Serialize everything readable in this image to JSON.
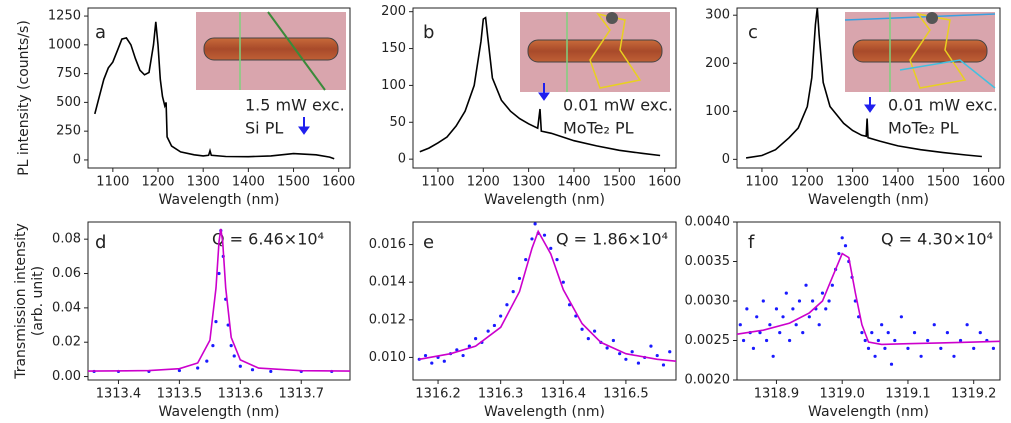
{
  "chart_data": [
    {
      "type": "line",
      "label": "a",
      "xlabel": "Wavelength (nm)",
      "ylabel": "PL intensity (counts/s)",
      "annotations": [
        "1.5 mW exc.",
        "Si PL"
      ],
      "xlim": [
        1045,
        1625
      ],
      "xticks": [
        1100,
        1200,
        1300,
        1400,
        1500,
        1600
      ],
      "ylim": [
        -70,
        1320
      ],
      "yticks": [
        0,
        250,
        500,
        750,
        1000,
        1250
      ],
      "series": [
        {
          "color": "#000000",
          "mode": "line",
          "x": [
            1060,
            1070,
            1080,
            1090,
            1100,
            1110,
            1120,
            1130,
            1140,
            1150,
            1160,
            1170,
            1180,
            1190,
            1195,
            1200,
            1205,
            1210,
            1215,
            1218,
            1220,
            1230,
            1250,
            1280,
            1300,
            1312,
            1315,
            1318,
            1350,
            1400,
            1450,
            1500,
            1550,
            1580,
            1590
          ],
          "values": [
            400,
            550,
            700,
            800,
            850,
            950,
            1050,
            1060,
            1000,
            880,
            780,
            740,
            760,
            1000,
            1200,
            1000,
            700,
            550,
            470,
            500,
            200,
            120,
            70,
            45,
            35,
            40,
            80,
            40,
            30,
            28,
            35,
            55,
            45,
            25,
            10
          ]
        }
      ]
    },
    {
      "type": "line",
      "label": "b",
      "xlabel": "Wavelength (nm)",
      "annotations": [
        "0.01 mW exc.",
        "MoTe₂ PL"
      ],
      "xlim": [
        1045,
        1625
      ],
      "xticks": [
        1100,
        1200,
        1300,
        1400,
        1500,
        1600
      ],
      "ylim": [
        -12,
        205
      ],
      "yticks": [
        0,
        50,
        100,
        150,
        200
      ],
      "series": [
        {
          "color": "#000000",
          "mode": "line",
          "x": [
            1060,
            1080,
            1100,
            1120,
            1140,
            1160,
            1180,
            1195,
            1200,
            1205,
            1210,
            1220,
            1240,
            1260,
            1280,
            1300,
            1320,
            1325,
            1328,
            1350,
            1400,
            1450,
            1500,
            1550,
            1590
          ],
          "values": [
            10,
            15,
            22,
            30,
            45,
            65,
            100,
            160,
            190,
            192,
            165,
            110,
            80,
            65,
            55,
            48,
            42,
            68,
            38,
            35,
            25,
            18,
            12,
            8,
            5
          ]
        }
      ]
    },
    {
      "type": "line",
      "label": "c",
      "xlabel": "Wavelength (nm)",
      "annotations": [
        "0.01 mW exc.",
        "MoTe₂ PL"
      ],
      "xlim": [
        1045,
        1625
      ],
      "xticks": [
        1100,
        1200,
        1300,
        1400,
        1500,
        1600
      ],
      "ylim": [
        -18,
        315
      ],
      "yticks": [
        0,
        100,
        200,
        300
      ],
      "series": [
        {
          "color": "#000000",
          "mode": "line",
          "x": [
            1065,
            1100,
            1130,
            1160,
            1180,
            1200,
            1210,
            1218,
            1222,
            1226,
            1235,
            1250,
            1280,
            1300,
            1320,
            1330,
            1332,
            1334,
            1360,
            1400,
            1450,
            1500,
            1550,
            1585
          ],
          "values": [
            3,
            8,
            20,
            45,
            65,
            110,
            170,
            280,
            315,
            260,
            160,
            110,
            75,
            60,
            50,
            48,
            85,
            45,
            38,
            28,
            20,
            14,
            9,
            6
          ]
        }
      ]
    },
    {
      "type": "scatter",
      "label": "d",
      "xlabel": "Wavelength (nm)",
      "ylabel": [
        "Transmission intensity",
        "(arb. unit)"
      ],
      "annotations": [
        "Q = 6.46×10⁴"
      ],
      "xlim": [
        1313.35,
        1313.78
      ],
      "xticks": [
        1313.4,
        1313.5,
        1313.6,
        1313.7
      ],
      "ylim": [
        -0.002,
        0.09
      ],
      "yticks": [
        {
          "value": 0,
          "label": "0.00"
        },
        0.02,
        0.04,
        0.06,
        0.08
      ],
      "series": [
        {
          "color": "#1a1aff",
          "mode": "markers",
          "x": [
            1313.36,
            1313.4,
            1313.45,
            1313.5,
            1313.53,
            1313.545,
            1313.555,
            1313.56,
            1313.565,
            1313.568,
            1313.572,
            1313.576,
            1313.58,
            1313.585,
            1313.59,
            1313.6,
            1313.62,
            1313.65,
            1313.7,
            1313.75
          ],
          "values": [
            0.003,
            0.003,
            0.003,
            0.0035,
            0.005,
            0.009,
            0.018,
            0.032,
            0.06,
            0.085,
            0.07,
            0.045,
            0.03,
            0.018,
            0.012,
            0.006,
            0.004,
            0.003,
            0.003,
            0.003
          ]
        },
        {
          "color": "#cc00cc",
          "mode": "line",
          "x": [
            1313.35,
            1313.45,
            1313.5,
            1313.53,
            1313.55,
            1313.56,
            1313.565,
            1313.568,
            1313.571,
            1313.576,
            1313.585,
            1313.6,
            1313.63,
            1313.7,
            1313.78
          ],
          "values": [
            0.0032,
            0.0035,
            0.0046,
            0.0079,
            0.0211,
            0.0516,
            0.0785,
            0.086,
            0.0785,
            0.0516,
            0.0228,
            0.0097,
            0.0049,
            0.0034,
            0.0032
          ]
        }
      ]
    },
    {
      "type": "scatter",
      "label": "e",
      "xlabel": "Wavelength (nm)",
      "annotations": [
        "Q = 1.86×10⁴"
      ],
      "xlim": [
        1316.16,
        1316.58
      ],
      "xticks": [
        1316.2,
        1316.3,
        1316.4,
        1316.5
      ],
      "ylim": [
        0.0088,
        0.0172
      ],
      "yticks": [
        {
          "value": 0.01,
          "label": "0.010"
        },
        0.012,
        0.014,
        0.016
      ],
      "series": [
        {
          "color": "#1a1aff",
          "mode": "markers",
          "x": [
            1316.17,
            1316.18,
            1316.19,
            1316.2,
            1316.21,
            1316.22,
            1316.23,
            1316.24,
            1316.25,
            1316.26,
            1316.27,
            1316.28,
            1316.29,
            1316.3,
            1316.31,
            1316.32,
            1316.33,
            1316.34,
            1316.35,
            1316.355,
            1316.36,
            1316.37,
            1316.38,
            1316.39,
            1316.4,
            1316.41,
            1316.42,
            1316.43,
            1316.44,
            1316.45,
            1316.46,
            1316.47,
            1316.48,
            1316.49,
            1316.5,
            1316.51,
            1316.52,
            1316.53,
            1316.54,
            1316.55,
            1316.56,
            1316.57
          ],
          "values": [
            0.0099,
            0.0101,
            0.0097,
            0.01,
            0.0098,
            0.0102,
            0.0104,
            0.0101,
            0.0106,
            0.011,
            0.0108,
            0.0114,
            0.0117,
            0.0122,
            0.0128,
            0.0135,
            0.0142,
            0.0152,
            0.0163,
            0.0171,
            0.0166,
            0.0165,
            0.0158,
            0.0152,
            0.014,
            0.0128,
            0.0122,
            0.0115,
            0.011,
            0.0114,
            0.0108,
            0.0105,
            0.0109,
            0.0102,
            0.0099,
            0.0103,
            0.0097,
            0.01,
            0.0106,
            0.0101,
            0.0096,
            0.0103
          ]
        },
        {
          "color": "#cc00cc",
          "mode": "line",
          "x": [
            1316.17,
            1316.22,
            1316.26,
            1316.3,
            1316.33,
            1316.35,
            1316.36,
            1316.38,
            1316.4,
            1316.43,
            1316.46,
            1316.5,
            1316.55,
            1316.58
          ],
          "values": [
            0.0099,
            0.0102,
            0.0106,
            0.0116,
            0.0135,
            0.0158,
            0.0167,
            0.0155,
            0.0136,
            0.0118,
            0.0108,
            0.0102,
            0.0099,
            0.0098
          ]
        }
      ]
    },
    {
      "type": "scatter",
      "label": "f",
      "xlabel": "Wavelength (nm)",
      "annotations": [
        "Q = 4.30×10⁴"
      ],
      "xlim": [
        1318.84,
        1319.24
      ],
      "xticks": [
        1318.9,
        {
          "value": 1319,
          "label": "1319.0"
        },
        1319.1,
        1319.2
      ],
      "ylim": [
        0.002,
        0.004
      ],
      "yticks": [
        {
          "value": 0.002,
          "label": "0.0020"
        },
        0.0025,
        {
          "value": 0.003,
          "label": "0.0030"
        },
        0.0035,
        {
          "value": 0.004,
          "label": "0.0040"
        }
      ],
      "series": [
        {
          "color": "#1a1aff",
          "mode": "markers",
          "x": [
            1318.845,
            1318.85,
            1318.855,
            1318.86,
            1318.865,
            1318.87,
            1318.875,
            1318.88,
            1318.885,
            1318.89,
            1318.895,
            1318.9,
            1318.905,
            1318.91,
            1318.915,
            1318.92,
            1318.925,
            1318.93,
            1318.935,
            1318.94,
            1318.945,
            1318.95,
            1318.955,
            1318.96,
            1318.965,
            1318.97,
            1318.975,
            1318.98,
            1318.985,
            1318.99,
            1318.995,
            1319.0,
            1319.005,
            1319.01,
            1319.015,
            1319.02,
            1319.025,
            1319.03,
            1319.035,
            1319.04,
            1319.045,
            1319.05,
            1319.055,
            1319.06,
            1319.065,
            1319.07,
            1319.075,
            1319.08,
            1319.09,
            1319.1,
            1319.11,
            1319.12,
            1319.13,
            1319.14,
            1319.15,
            1319.16,
            1319.17,
            1319.18,
            1319.19,
            1319.2,
            1319.21,
            1319.22,
            1319.23
          ],
          "values": [
            0.0027,
            0.0025,
            0.0029,
            0.0026,
            0.0024,
            0.0028,
            0.0026,
            0.003,
            0.0025,
            0.0027,
            0.0023,
            0.0029,
            0.0026,
            0.0028,
            0.0031,
            0.0025,
            0.0029,
            0.0027,
            0.003,
            0.0026,
            0.0032,
            0.0028,
            0.003,
            0.0029,
            0.0027,
            0.0031,
            0.0029,
            0.003,
            0.0032,
            0.0034,
            0.0036,
            0.0038,
            0.0037,
            0.0035,
            0.0033,
            0.003,
            0.0028,
            0.0026,
            0.0025,
            0.0024,
            0.0026,
            0.0023,
            0.0025,
            0.0027,
            0.0024,
            0.0026,
            0.0022,
            0.0025,
            0.0028,
            0.0024,
            0.0026,
            0.0023,
            0.0025,
            0.0027,
            0.0024,
            0.0026,
            0.0023,
            0.0025,
            0.0027,
            0.0024,
            0.0026,
            0.0025,
            0.0024
          ]
        },
        {
          "color": "#cc00cc",
          "mode": "line",
          "x": [
            1318.84,
            1318.88,
            1318.92,
            1318.95,
            1318.97,
            1318.985,
            1319.0,
            1319.01,
            1319.02,
            1319.03,
            1319.04,
            1319.06,
            1319.1,
            1319.15,
            1319.2,
            1319.24
          ],
          "values": [
            0.00258,
            0.00263,
            0.00272,
            0.00285,
            0.003,
            0.0033,
            0.0036,
            0.00355,
            0.0031,
            0.0027,
            0.00248,
            0.00245,
            0.00246,
            0.00247,
            0.00248,
            0.00249
          ]
        }
      ]
    }
  ]
}
